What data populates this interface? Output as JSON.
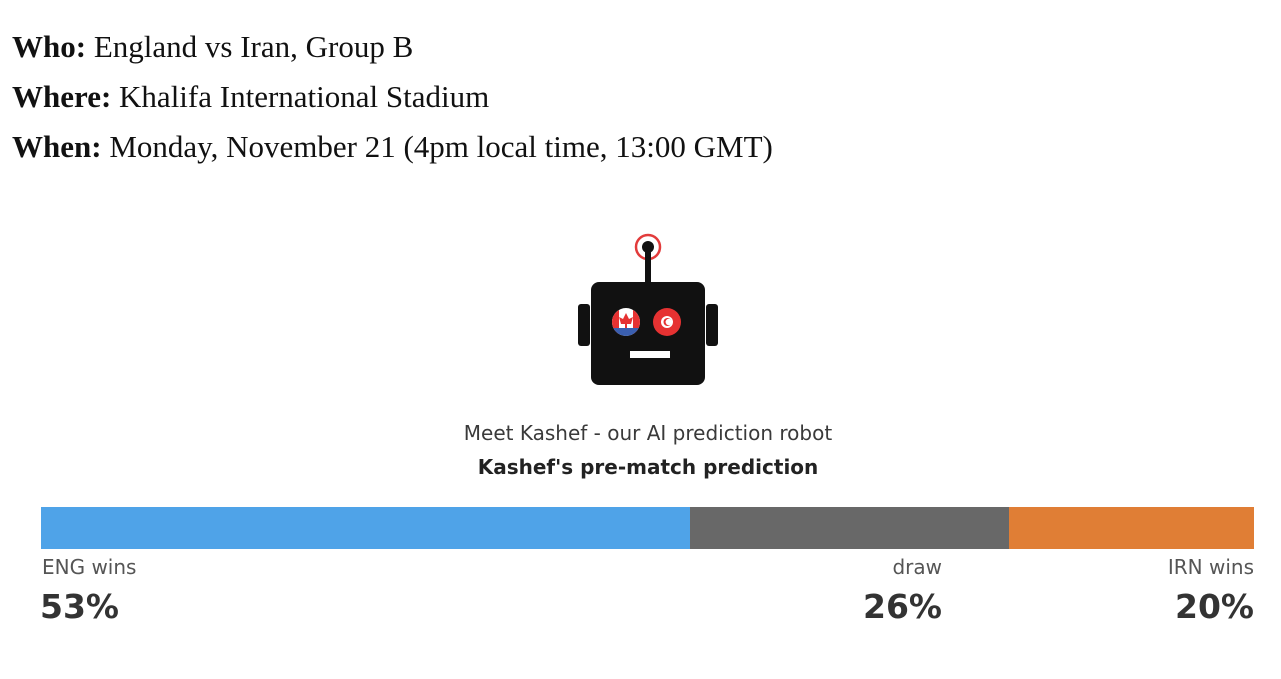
{
  "info": {
    "who_label": "Who:",
    "who_value": " England vs Iran, Group B",
    "where_label": "Where:",
    "where_value": " Khalifa International Stadium",
    "when_label": "When:",
    "when_value": " Monday, November 21 (4pm local time, 13:00 GMT)"
  },
  "robot": {
    "icon": "robot-icon",
    "left_eye": "canada-flag-icon",
    "right_eye": "tunisia-flag-icon"
  },
  "caption": {
    "subtitle": "Meet Kashef - our AI prediction robot",
    "title": "Kashef's pre-match prediction"
  },
  "prediction": {
    "outcomes": [
      {
        "label": "ENG wins",
        "percent_text": "53%",
        "share": 53,
        "color": "#4fa3e8"
      },
      {
        "label": "draw",
        "percent_text": "26%",
        "share": 26,
        "color": "#686868"
      },
      {
        "label": "IRN wins",
        "percent_text": "20%",
        "share": 20,
        "color": "#e07e35"
      }
    ]
  }
}
